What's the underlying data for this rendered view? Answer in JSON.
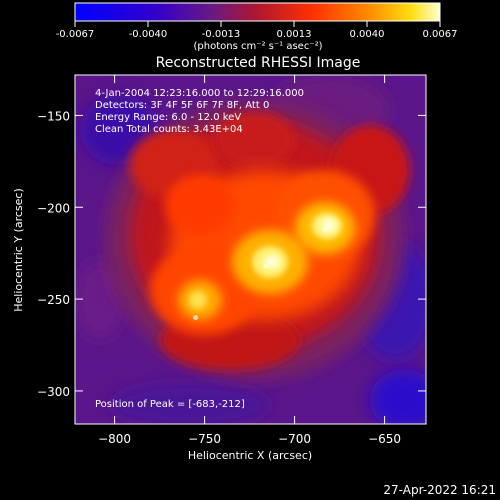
{
  "chart_data": {
    "type": "heatmap",
    "title": "Reconstructed RHESSI Image",
    "xlabel": "Heliocentric X (arcsec)",
    "ylabel": "Heliocentric Y (arcsec)",
    "xlim": [
      -822,
      -627
    ],
    "ylim": [
      -318,
      -128
    ],
    "x_ticks": [
      -800,
      -750,
      -700,
      -650
    ],
    "y_ticks": [
      -150,
      -200,
      -250,
      -300
    ],
    "colorbar": {
      "ticks": [
        "-0.0067",
        "-0.0040",
        "-0.0013",
        "0.0013",
        "0.0040",
        "0.0067"
      ],
      "range": [
        -0.0067,
        0.0067
      ],
      "unit_label": "(photons cm⁻² s⁻¹ asec⁻²)",
      "colormap": [
        "#0000ff",
        "#3300cc",
        "#5a0a8c",
        "#7a2a60",
        "#b8142a",
        "#ff3300",
        "#ff7a00",
        "#ffcc00",
        "#ffffc8"
      ]
    },
    "annotations": [
      "4-Jan-2004 12:23:16.000 to 12:29:16.000",
      "Detectors: 3F 4F 5F 6F 7F 8F, Att 0",
      "Energy Range: 6.0 - 12.0 keV",
      "Clean    Total counts: 3.43E+04"
    ],
    "peak_label": "Position of Peak = [-683,-212]",
    "peaks": [
      {
        "x": -683,
        "y": -212,
        "value": 0.0067
      },
      {
        "x": -716,
        "y": -232,
        "value": 0.0063
      },
      {
        "x": -755,
        "y": -260,
        "value": 0.0052
      }
    ]
  },
  "footer": {
    "timestamp": "27-Apr-2022 16:21"
  }
}
